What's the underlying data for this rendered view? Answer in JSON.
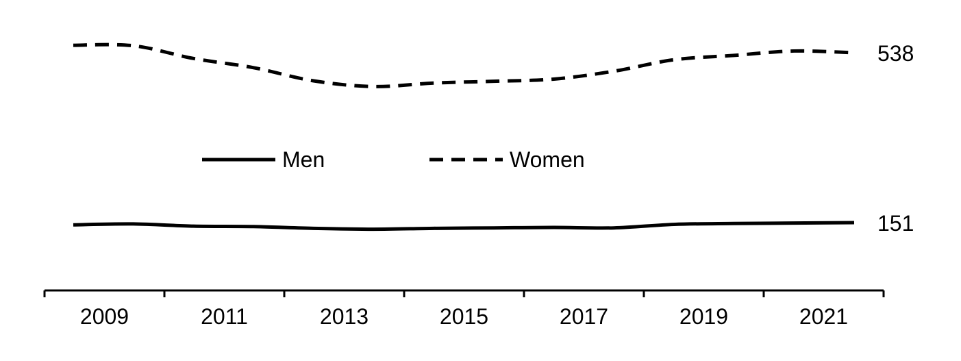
{
  "chart_data": {
    "type": "line",
    "x": [
      2009,
      2010,
      2011,
      2012,
      2013,
      2014,
      2015,
      2016,
      2017,
      2018,
      2019,
      2020,
      2021,
      2022
    ],
    "series": [
      {
        "name": "Men",
        "style": "solid",
        "values": [
          146,
          148,
          143,
          142,
          138,
          136,
          138,
          139,
          140,
          139,
          147,
          149,
          150,
          151
        ],
        "end_label": "151"
      },
      {
        "name": "Women",
        "style": "dashed",
        "values": [
          555,
          554,
          525,
          504,
          474,
          461,
          469,
          473,
          478,
          496,
          522,
          532,
          542,
          538
        ],
        "end_label": "538"
      }
    ],
    "x_tick_labels": [
      "2009",
      "2011",
      "2013",
      "2015",
      "2017",
      "2019",
      "2021"
    ],
    "y_axis_visible": false,
    "grid": false,
    "legend_position": "center",
    "colors": {
      "line": "#000000"
    }
  }
}
